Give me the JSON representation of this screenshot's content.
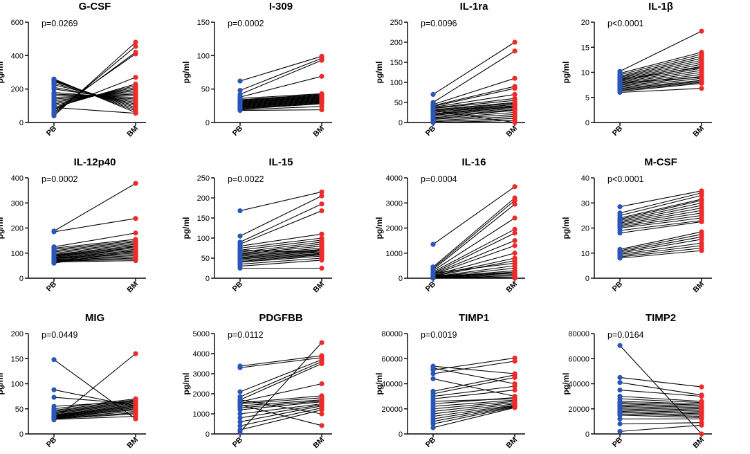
{
  "chart_data": [
    {
      "type": "line",
      "title": "G-CSF",
      "pvalue": "p=0.0269",
      "ylabel": "pg/ml",
      "categories": [
        "PB",
        "BM"
      ],
      "ylim": [
        0,
        600
      ],
      "yticks": [
        "0",
        "200",
        "400",
        "600"
      ],
      "yvals": [
        0,
        200,
        400,
        600
      ],
      "series_colors": [
        "#2a55b8",
        "#ee2b2b"
      ],
      "pb": [
        40,
        50,
        60,
        70,
        80,
        90,
        100,
        110,
        120,
        130,
        140,
        150,
        160,
        170,
        180,
        200,
        210,
        225,
        235,
        245,
        250,
        255,
        260,
        90
      ],
      "bm": [
        480,
        455,
        420,
        410,
        270,
        230,
        220,
        210,
        200,
        190,
        180,
        170,
        160,
        150,
        140,
        130,
        120,
        110,
        100,
        90,
        80,
        70,
        60,
        55
      ]
    },
    {
      "type": "line",
      "title": "I-309",
      "pvalue": "p=0.0002",
      "ylabel": "pg/ml",
      "categories": [
        "PB",
        "BM"
      ],
      "ylim": [
        0,
        150
      ],
      "yticks": [
        "0",
        "50",
        "100",
        "150"
      ],
      "yvals": [
        0,
        50,
        100,
        150
      ],
      "series_colors": [
        "#2a55b8",
        "#ee2b2b"
      ],
      "pb": [
        62,
        48,
        42,
        38,
        36,
        34,
        33,
        32,
        31,
        30,
        29,
        28,
        27,
        26,
        25,
        24,
        23,
        22,
        21,
        20,
        19,
        18
      ],
      "bm": [
        99,
        96,
        93,
        69,
        43,
        42,
        41,
        40,
        39,
        38,
        37,
        36,
        35,
        34,
        33,
        32,
        31,
        30,
        29,
        28,
        24,
        19
      ]
    },
    {
      "type": "line",
      "title": "IL-1ra",
      "pvalue": "p=0.0096",
      "ylabel": "pg/ml",
      "categories": [
        "PB",
        "BM"
      ],
      "ylim": [
        0,
        250
      ],
      "yticks": [
        "0",
        "50",
        "100",
        "150",
        "200",
        "250"
      ],
      "yvals": [
        0,
        50,
        100,
        150,
        200,
        250
      ],
      "series_colors": [
        "#2a55b8",
        "#ee2b2b"
      ],
      "pb": [
        70,
        50,
        45,
        42,
        40,
        38,
        35,
        32,
        30,
        28,
        25,
        22,
        20,
        18,
        15,
        12,
        10,
        8,
        5,
        2,
        0,
        30,
        36,
        25
      ],
      "bm": [
        200,
        178,
        110,
        90,
        85,
        70,
        55,
        50,
        48,
        45,
        42,
        40,
        38,
        35,
        32,
        30,
        25,
        20,
        15,
        10,
        5,
        0,
        60,
        45
      ]
    },
    {
      "type": "line",
      "title": "IL-1β",
      "pvalue": "p<0.0001",
      "ylabel": "pg/ml",
      "categories": [
        "PB",
        "BM"
      ],
      "ylim": [
        0,
        20
      ],
      "yticks": [
        "0",
        "5",
        "10",
        "15",
        "20"
      ],
      "yvals": [
        0,
        5,
        10,
        15,
        20
      ],
      "series_colors": [
        "#2a55b8",
        "#ee2b2b"
      ],
      "pb": [
        10.2,
        9.8,
        9.5,
        9.2,
        9.0,
        8.8,
        8.6,
        8.4,
        8.2,
        8.0,
        7.8,
        7.6,
        7.4,
        7.2,
        7.0,
        6.8,
        6.6,
        6.4,
        6.2,
        6.0,
        8.5,
        7.9
      ],
      "bm": [
        18.2,
        14.0,
        13.6,
        13.2,
        12.8,
        12.4,
        12.0,
        11.6,
        11.2,
        10.8,
        10.4,
        10.0,
        9.6,
        9.2,
        8.8,
        8.4,
        8.2,
        8.0,
        7.8,
        6.8,
        11.0,
        9.0
      ]
    },
    {
      "type": "line",
      "title": "IL-12p40",
      "pvalue": "p=0.0002",
      "ylabel": "pg/ml",
      "categories": [
        "PB",
        "BM"
      ],
      "ylim": [
        0,
        400
      ],
      "yticks": [
        "0",
        "100",
        "200",
        "300",
        "400"
      ],
      "yvals": [
        0,
        100,
        200,
        300,
        400
      ],
      "series_colors": [
        "#2a55b8",
        "#ee2b2b"
      ],
      "pb": [
        188,
        185,
        125,
        120,
        115,
        110,
        105,
        100,
        95,
        92,
        90,
        88,
        85,
        82,
        80,
        78,
        75,
        72,
        70,
        68,
        65,
        62,
        60
      ],
      "bm": [
        378,
        238,
        180,
        155,
        150,
        145,
        140,
        135,
        130,
        125,
        120,
        115,
        110,
        105,
        100,
        95,
        90,
        85,
        80,
        75,
        70,
        130,
        110
      ]
    },
    {
      "type": "line",
      "title": "IL-15",
      "pvalue": "p=0.0022",
      "ylabel": "pg/ml",
      "categories": [
        "PB",
        "BM"
      ],
      "ylim": [
        0,
        250
      ],
      "yticks": [
        "0",
        "50",
        "100",
        "150",
        "200",
        "250"
      ],
      "yvals": [
        0,
        50,
        100,
        150,
        200,
        250
      ],
      "series_colors": [
        "#2a55b8",
        "#ee2b2b"
      ],
      "pb": [
        168,
        105,
        90,
        85,
        80,
        75,
        70,
        65,
        62,
        60,
        58,
        55,
        52,
        50,
        48,
        45,
        42,
        40,
        35,
        30,
        25,
        55,
        70
      ],
      "bm": [
        215,
        205,
        185,
        168,
        110,
        100,
        95,
        90,
        85,
        80,
        75,
        70,
        68,
        65,
        62,
        60,
        58,
        55,
        50,
        45,
        25,
        72,
        64
      ]
    },
    {
      "type": "line",
      "title": "IL-16",
      "pvalue": "p=0.0004",
      "ylabel": "pg/ml",
      "categories": [
        "PB",
        "BM"
      ],
      "ylim": [
        0,
        4000
      ],
      "yticks": [
        "0",
        "1000",
        "2000",
        "3000",
        "4000"
      ],
      "yvals": [
        0,
        1000,
        2000,
        3000,
        4000
      ],
      "series_colors": [
        "#2a55b8",
        "#ee2b2b"
      ],
      "pb": [
        1350,
        450,
        400,
        350,
        300,
        250,
        200,
        180,
        150,
        120,
        100,
        80,
        60,
        50,
        40,
        30,
        20,
        10,
        0,
        0,
        0,
        200,
        100
      ],
      "bm": [
        3650,
        3200,
        3100,
        2950,
        2400,
        1950,
        1800,
        1500,
        1300,
        1000,
        800,
        700,
        500,
        400,
        300,
        250,
        200,
        150,
        100,
        50,
        0,
        600,
        200
      ]
    },
    {
      "type": "line",
      "title": "M-CSF",
      "pvalue": "p<0.0001",
      "ylabel": "pg/ml",
      "categories": [
        "PB",
        "BM"
      ],
      "ylim": [
        0,
        40
      ],
      "yticks": [
        "0",
        "10",
        "20",
        "30",
        "40"
      ],
      "yvals": [
        0,
        10,
        20,
        30,
        40
      ],
      "series_colors": [
        "#2a55b8",
        "#ee2b2b"
      ],
      "pb": [
        28.5,
        26,
        25,
        24,
        23.5,
        23,
        22.5,
        22,
        21.5,
        21,
        20.5,
        20,
        19,
        18,
        11.5,
        11,
        10.5,
        10,
        9.5,
        9,
        8.5,
        8
      ],
      "bm": [
        34.8,
        34,
        33,
        31.5,
        31,
        30,
        29,
        28,
        27,
        26,
        25,
        24,
        23,
        22.5,
        18.5,
        17.5,
        16.5,
        15.5,
        14,
        13,
        12,
        11
      ]
    },
    {
      "type": "line",
      "title": "MIG",
      "pvalue": "p=0.0449",
      "ylabel": "pg/ml",
      "categories": [
        "PB",
        "BM"
      ],
      "ylim": [
        0,
        200
      ],
      "yticks": [
        "0",
        "50",
        "100",
        "150",
        "200"
      ],
      "yvals": [
        0,
        50,
        100,
        150,
        200
      ],
      "series_colors": [
        "#2a55b8",
        "#ee2b2b"
      ],
      "pb": [
        148,
        88,
        73,
        55,
        50,
        47,
        45,
        43,
        42,
        40,
        38,
        37,
        36,
        35,
        34,
        33,
        32,
        31,
        30,
        29,
        28
      ],
      "bm": [
        30,
        55,
        60,
        65,
        70,
        68,
        66,
        64,
        62,
        60,
        58,
        56,
        54,
        52,
        50,
        48,
        45,
        42,
        40,
        35,
        160
      ]
    },
    {
      "type": "line",
      "title": "PDGFBB",
      "pvalue": "p=0.0112",
      "ylabel": "pg/ml",
      "categories": [
        "PB",
        "BM"
      ],
      "ylim": [
        0,
        5000
      ],
      "yticks": [
        "0",
        "1000",
        "2000",
        "3000",
        "4000",
        "5000"
      ],
      "yvals": [
        0,
        1000,
        2000,
        3000,
        4000,
        5000
      ],
      "series_colors": [
        "#2a55b8",
        "#ee2b2b"
      ],
      "pb": [
        3380,
        3300,
        2100,
        1850,
        1700,
        1600,
        1550,
        1500,
        1400,
        1300,
        1200,
        1000,
        800,
        600,
        400,
        200,
        100,
        1700,
        1450
      ],
      "bm": [
        3900,
        3800,
        3700,
        3600,
        3500,
        2500,
        1900,
        1800,
        1700,
        1650,
        1600,
        1500,
        1450,
        1400,
        1300,
        1200,
        4550,
        1000,
        420
      ]
    },
    {
      "type": "line",
      "title": "TIMP1",
      "pvalue": "p=0.0019",
      "ylabel": "pg/ml",
      "categories": [
        "PB",
        "BM"
      ],
      "ylim": [
        0,
        80000
      ],
      "yticks": [
        "0",
        "20000",
        "40000",
        "60000",
        "80000"
      ],
      "yvals": [
        0,
        20000,
        40000,
        60000,
        80000
      ],
      "series_colors": [
        "#2a55b8",
        "#ee2b2b"
      ],
      "pb": [
        54000,
        52500,
        51000,
        48000,
        44000,
        34000,
        32000,
        30000,
        28000,
        26000,
        24000,
        22000,
        20000,
        18000,
        16000,
        14000,
        12000,
        10000,
        8000,
        5000
      ],
      "bm": [
        48000,
        40000,
        60500,
        58000,
        30000,
        47000,
        45000,
        38000,
        35000,
        28000,
        29000,
        27000,
        26000,
        25000,
        24000,
        23000,
        22500,
        22000,
        21500,
        21000
      ]
    },
    {
      "type": "line",
      "title": "TIMP2",
      "pvalue": "p=0.0164",
      "ylabel": "pg/ml",
      "categories": [
        "PB",
        "BM"
      ],
      "ylim": [
        0,
        80000
      ],
      "yticks": [
        "0",
        "20000",
        "40000",
        "60000",
        "80000"
      ],
      "yvals": [
        0,
        20000,
        40000,
        60000,
        80000
      ],
      "series_colors": [
        "#2a55b8",
        "#ee2b2b"
      ],
      "pb": [
        70500,
        45000,
        41000,
        35000,
        30000,
        28000,
        26000,
        25000,
        24000,
        23000,
        22000,
        21000,
        20000,
        19000,
        18000,
        17000,
        16000,
        15000,
        12000,
        8000,
        2000
      ],
      "bm": [
        0,
        37500,
        31000,
        30000,
        26000,
        25000,
        24000,
        23000,
        22000,
        21000,
        20000,
        19000,
        18000,
        17000,
        16000,
        15000,
        14000,
        13000,
        12000,
        9000,
        7000
      ]
    }
  ]
}
